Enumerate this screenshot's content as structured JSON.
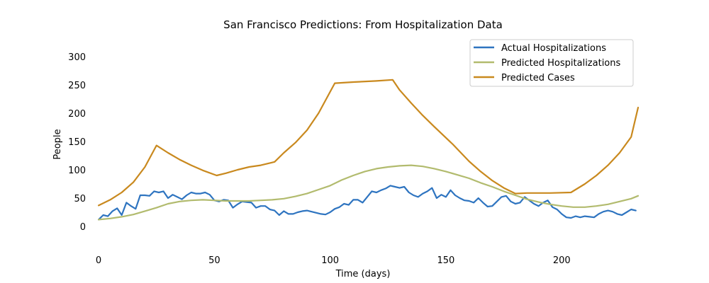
{
  "chart_data": {
    "type": "line",
    "title": "San Francisco Predictions: From Hospitalization Data",
    "xlabel": "Time (days)",
    "ylabel": "People",
    "xlim": [
      -4,
      233
    ],
    "ylim": [
      -45,
      325
    ],
    "xticks": [
      0,
      50,
      100,
      150,
      200
    ],
    "yticks": [
      0,
      50,
      100,
      150,
      200,
      250,
      300
    ],
    "grid": false,
    "legend_position": "top-right",
    "series": [
      {
        "name": "Actual Hospitalizations",
        "color": "#2e74c0",
        "x": [
          0,
          2,
          4,
          6,
          8,
          10,
          12,
          14,
          16,
          18,
          20,
          22,
          24,
          26,
          28,
          30,
          32,
          34,
          36,
          38,
          40,
          42,
          44,
          46,
          48,
          50,
          52,
          54,
          56,
          58,
          60,
          62,
          64,
          66,
          68,
          70,
          72,
          74,
          76,
          78,
          80,
          82,
          84,
          86,
          88,
          90,
          92,
          94,
          96,
          98,
          100,
          102,
          104,
          106,
          108,
          110,
          112,
          114,
          116,
          118,
          120,
          122,
          124,
          126,
          128,
          130,
          132,
          134,
          136,
          138,
          140,
          142,
          144,
          146,
          148,
          150,
          152,
          154,
          156,
          158,
          160,
          162,
          164,
          166,
          168,
          170,
          172,
          174,
          176,
          178,
          180,
          182,
          184,
          186,
          188,
          190,
          192,
          194,
          196,
          198,
          200,
          202,
          204,
          206,
          208,
          210,
          212,
          214,
          216,
          218,
          220,
          222,
          224,
          226,
          228,
          230,
          232
        ],
        "y": [
          12,
          20,
          18,
          27,
          32,
          20,
          42,
          36,
          31,
          55,
          55,
          54,
          62,
          60,
          62,
          50,
          56,
          52,
          48,
          55,
          60,
          58,
          58,
          60,
          56,
          46,
          44,
          47,
          46,
          33,
          39,
          44,
          43,
          42,
          33,
          36,
          36,
          30,
          28,
          20,
          27,
          22,
          22,
          25,
          27,
          28,
          26,
          24,
          22,
          21,
          25,
          31,
          34,
          40,
          38,
          47,
          47,
          42,
          52,
          62,
          60,
          64,
          67,
          72,
          70,
          68,
          70,
          60,
          55,
          52,
          58,
          62,
          68,
          50,
          56,
          52,
          64,
          55,
          50,
          46,
          45,
          42,
          50,
          42,
          35,
          36,
          44,
          52,
          54,
          44,
          40,
          42,
          52,
          46,
          40,
          36,
          42,
          46,
          34,
          30,
          22,
          16,
          15,
          18,
          16,
          18,
          17,
          16,
          22,
          26,
          28,
          26,
          22,
          20,
          25,
          30,
          28
        ]
      },
      {
        "name": "Predicted Hospitalizations",
        "color": "#b2bb6e",
        "x": [
          0,
          5,
          10,
          15,
          20,
          25,
          30,
          35,
          40,
          45,
          50,
          55,
          60,
          65,
          70,
          75,
          80,
          85,
          90,
          95,
          100,
          105,
          110,
          115,
          120,
          125,
          130,
          135,
          140,
          145,
          150,
          155,
          160,
          165,
          170,
          175,
          180,
          185,
          190,
          195,
          200,
          205,
          210,
          215,
          220,
          225,
          230,
          233
        ],
        "y": [
          12,
          14,
          17,
          21,
          27,
          33,
          40,
          44,
          46,
          47,
          46,
          45,
          45,
          45,
          46,
          47,
          49,
          53,
          58,
          65,
          72,
          82,
          90,
          97,
          102,
          105,
          107,
          108,
          106,
          102,
          97,
          91,
          85,
          77,
          70,
          62,
          55,
          48,
          43,
          39,
          36,
          34,
          34,
          36,
          39,
          44,
          49,
          54
        ]
      },
      {
        "name": "Predicted Cases",
        "color": "#c9891e",
        "x": [
          0,
          5,
          10,
          15,
          20,
          25,
          30,
          35,
          40,
          45,
          51,
          55,
          60,
          65,
          70,
          76,
          80,
          85,
          90,
          95,
          102,
          110,
          120,
          127,
          130,
          135,
          140,
          145,
          153,
          160,
          165,
          170,
          175,
          180,
          185,
          190,
          195,
          204,
          210,
          215,
          220,
          225,
          230,
          233
        ],
        "y": [
          37,
          47,
          60,
          78,
          105,
          143,
          130,
          118,
          108,
          99,
          90,
          94,
          100,
          105,
          108,
          114,
          130,
          148,
          170,
          200,
          253,
          255,
          257,
          259,
          241,
          218,
          196,
          176,
          145,
          115,
          97,
          81,
          68,
          58,
          59,
          59,
          59,
          60,
          75,
          90,
          108,
          130,
          158,
          210
        ]
      }
    ]
  }
}
